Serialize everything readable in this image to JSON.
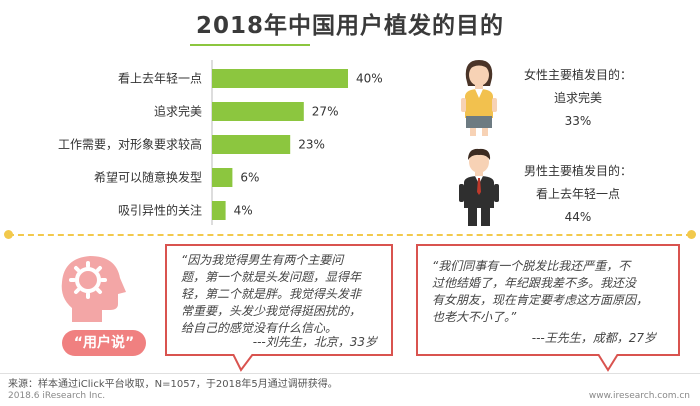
{
  "title": "2018年中国用户植发的目的",
  "chart_data": {
    "type": "bar",
    "orientation": "horizontal",
    "categories": [
      "看上去年轻一点",
      "追求完美",
      "工作需要，对形象要求较高",
      "希望可以随意换发型",
      "吸引异性的关注"
    ],
    "values": [
      40,
      27,
      23,
      6,
      4
    ],
    "value_labels": [
      "40%",
      "27%",
      "23%",
      "6%",
      "4%"
    ],
    "xlim": [
      0,
      40
    ],
    "bar_color": "#8cc63f",
    "grid": false
  },
  "female": {
    "heading": "女性主要植发目的：",
    "purpose": "追求完美",
    "percent": "33%"
  },
  "male": {
    "heading": "男性主要植发目的：",
    "purpose": "看上去年轻一点",
    "percent": "44%"
  },
  "user_say": {
    "badge": "“用户说”"
  },
  "quote1": {
    "lines": [
      "“因为我觉得男生有两个主要问",
      "题，第一个就是头发问题，显得年",
      "轻，第二个就是胖。我觉得头发非",
      "常重要，头发少我觉得挺困扰的，",
      "给自己的感觉没有什么信心。"
    ],
    "author": "---刘先生，北京，33岁"
  },
  "quote2": {
    "lines": [
      "“我们同事有一个脱发比我还严重，不",
      "过他结婚了，年纪跟我差不多。我还没",
      "有女朋友，现在肯定要考虑这方面原因，",
      "也老大不小了。”"
    ],
    "author": "---王先生，成都，27岁"
  },
  "source": "来源：样本通过iClick平台收取，N=1057，于2018年5月通过调研获得。",
  "footer": {
    "left": "2018.6 iResearch Inc.",
    "right": "www.iresearch.com.cn"
  },
  "colors": {
    "accent_green": "#8cc63f",
    "quote_border": "#d9534f",
    "badge_pink": "#f08080",
    "divider_yellow": "#f2c94c"
  }
}
